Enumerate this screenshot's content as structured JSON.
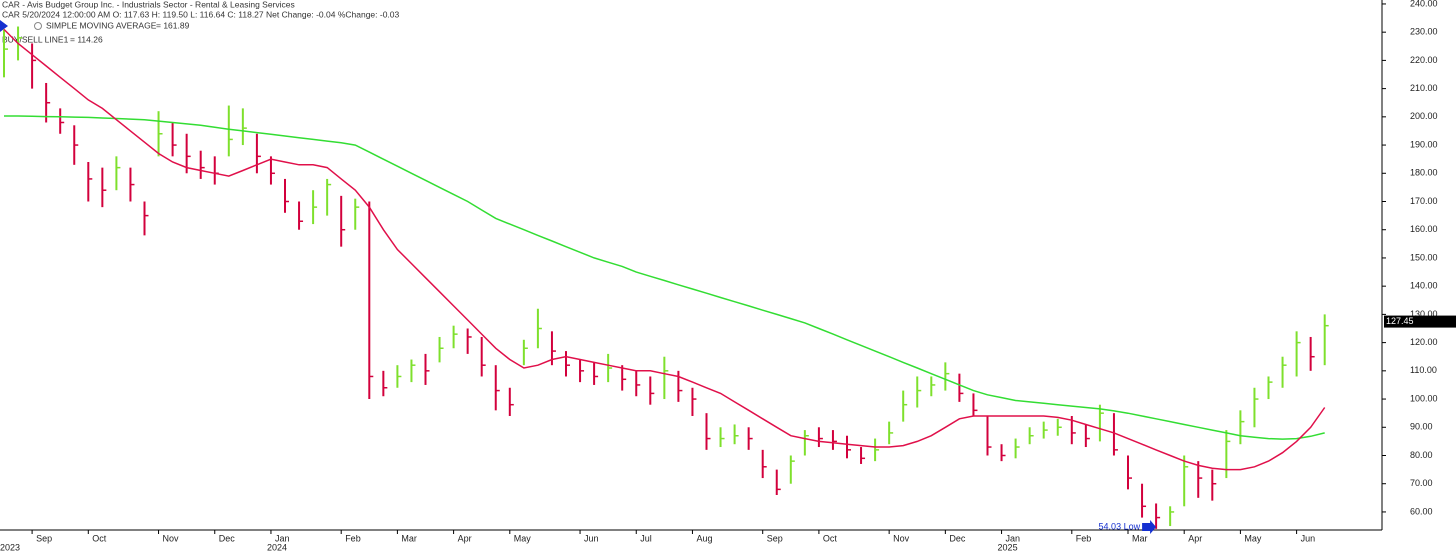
{
  "chart_data": {
    "type": "ohlc",
    "title": "CAR - Avis Budget Group Inc. - Industrials Sector - Rental & Leasing Services",
    "subtitle": "CAR 5/20/2024 12:00:00 AM O: 117.63 H: 119.50 L: 116.64 C: 118.27 Net Change: -0.04  %Change: -0.03",
    "categories": [
      null,
      null,
      "Sep",
      null,
      null,
      null,
      "Oct",
      null,
      null,
      null,
      null,
      "Nov",
      null,
      null,
      null,
      "Dec",
      null,
      null,
      null,
      "Jan",
      null,
      null,
      null,
      null,
      "Feb",
      null,
      null,
      null,
      "Mar",
      null,
      null,
      null,
      "Apr",
      null,
      null,
      null,
      "May",
      null,
      null,
      null,
      null,
      "Jun",
      null,
      null,
      null,
      "Jul",
      null,
      null,
      null,
      "Aug",
      null,
      null,
      null,
      null,
      "Sep",
      null,
      null,
      null,
      "Oct",
      null,
      null,
      null,
      null,
      "Nov",
      null,
      null,
      null,
      "Dec",
      null,
      null,
      null,
      "Jan",
      null,
      null,
      null,
      null,
      "Feb",
      null,
      null,
      null,
      "Mar",
      null,
      null,
      null,
      "Apr",
      null,
      null,
      null,
      "May",
      null,
      null,
      null,
      "Jun",
      null,
      null
    ],
    "category_years": [
      "2023",
      null,
      null,
      null,
      null,
      null,
      null,
      null,
      null,
      null,
      null,
      null,
      null,
      null,
      null,
      null,
      null,
      null,
      null,
      "2024",
      null,
      null,
      null,
      null,
      null,
      null,
      null,
      null,
      null,
      null,
      null,
      null,
      null,
      null,
      null,
      null,
      null,
      null,
      null,
      null,
      null,
      null,
      null,
      null,
      null,
      null,
      null,
      null,
      null,
      null,
      null,
      null,
      null,
      null,
      null,
      null,
      null,
      null,
      null,
      null,
      null,
      null,
      null,
      null,
      null,
      null,
      null,
      null,
      null,
      null,
      null,
      "2025",
      null,
      null,
      null,
      null,
      null,
      null,
      null,
      null,
      null,
      null,
      null,
      null,
      null,
      null,
      null,
      null,
      null,
      null,
      null,
      null,
      null,
      null,
      null
    ],
    "series": [
      {
        "name": "CAR",
        "type": "ohlc",
        "up_color": "#7ee02c",
        "down_color": "#d2003c",
        "values": [
          224,
          228,
          220,
          205,
          198,
          190,
          178,
          174,
          182,
          176,
          165,
          194,
          190,
          186,
          182,
          180,
          192,
          196,
          186,
          180,
          170,
          163,
          168,
          176,
          160,
          168,
          108,
          104,
          108,
          112,
          110,
          118,
          123,
          122,
          112,
          103,
          98,
          118,
          125,
          117,
          112,
          110,
          108,
          111,
          107,
          105,
          102,
          110,
          103,
          100,
          86,
          86,
          87,
          86,
          76,
          68,
          78,
          87,
          86,
          85,
          82,
          79,
          82,
          88,
          98,
          103,
          105,
          109,
          102,
          96,
          83,
          80,
          83,
          87,
          89,
          90,
          88,
          86,
          95,
          82,
          72,
          62,
          58,
          60,
          76,
          72,
          70,
          85,
          92,
          100,
          106,
          112,
          120,
          115,
          126
        ],
        "high": [
          231,
          232,
          226,
          212,
          203,
          197,
          184,
          182,
          186,
          182,
          170,
          202,
          198,
          194,
          188,
          186,
          204,
          203,
          194,
          186,
          178,
          170,
          174,
          178,
          172,
          171,
          170,
          110,
          112,
          114,
          116,
          122,
          126,
          125,
          122,
          112,
          104,
          121,
          132,
          124,
          117,
          114,
          113,
          116,
          112,
          110,
          108,
          115,
          110,
          104,
          95,
          90,
          91,
          90,
          82,
          75,
          80,
          89,
          90,
          89,
          87,
          83,
          86,
          92,
          103,
          108,
          108,
          113,
          109,
          102,
          94,
          84,
          86,
          90,
          92,
          93,
          94,
          91,
          98,
          95,
          80,
          70,
          63,
          62,
          80,
          78,
          75,
          89,
          96,
          104,
          108,
          115,
          124,
          122,
          130
        ],
        "low": [
          214,
          220,
          210,
          198,
          194,
          183,
          170,
          168,
          174,
          170,
          158,
          186,
          186,
          180,
          178,
          176,
          186,
          190,
          180,
          176,
          166,
          160,
          162,
          165,
          154,
          160,
          100,
          101,
          104,
          106,
          105,
          113,
          118,
          116,
          108,
          96,
          94,
          112,
          118,
          112,
          108,
          106,
          105,
          106,
          103,
          101,
          98,
          100,
          99,
          94,
          82,
          83,
          84,
          82,
          72,
          66,
          70,
          80,
          83,
          82,
          79,
          77,
          78,
          84,
          92,
          97,
          101,
          103,
          99,
          94,
          80,
          78,
          79,
          84,
          86,
          87,
          84,
          83,
          85,
          80,
          68,
          58,
          54,
          55,
          62,
          65,
          64,
          72,
          84,
          90,
          100,
          104,
          108,
          110,
          112
        ]
      },
      {
        "name": "SIMPLE MOVING AVERAGE",
        "legend_value": "= 161.89",
        "type": "line",
        "color": "#33dd33",
        "values": [
          200.3,
          200.3,
          200.2,
          200.1,
          200,
          199.9,
          199.8,
          199.6,
          199.4,
          199.2,
          199,
          198.5,
          198,
          197.5,
          197,
          196.3,
          195.6,
          195,
          194.4,
          193.8,
          193.2,
          192.6,
          192,
          191.4,
          190.8,
          190,
          187.5,
          185,
          182.5,
          180,
          177.5,
          175,
          172.5,
          170,
          167,
          164,
          162,
          160,
          158,
          156,
          154,
          152,
          150,
          148.5,
          147,
          145,
          143.5,
          142,
          140.5,
          139,
          137.5,
          136,
          134.5,
          133,
          131.5,
          130,
          128.5,
          127,
          125,
          123,
          121,
          119,
          117,
          115,
          113,
          111,
          109,
          107,
          105,
          103,
          101.5,
          100.5,
          99.5,
          99,
          98.5,
          98,
          97.5,
          97,
          96.5,
          95.8,
          95,
          94,
          93,
          92,
          91,
          90,
          89,
          88,
          87,
          86.5,
          86,
          85.8,
          86,
          86.8,
          88
        ]
      },
      {
        "name": "BUY/SELL LINE1",
        "legend_value": "= 114.26",
        "type": "line",
        "color": "#e0104a",
        "values": [
          231,
          226,
          222,
          218,
          214,
          210,
          206,
          203,
          199,
          195,
          191,
          187,
          184,
          182,
          181,
          180,
          179,
          181,
          183,
          185,
          184,
          183,
          183,
          182,
          178,
          174,
          168,
          160,
          153,
          148,
          143,
          138,
          133,
          128,
          123,
          118,
          114,
          111,
          112,
          114,
          115,
          114,
          113,
          112,
          111,
          110,
          110,
          109,
          108,
          106,
          104,
          102,
          99,
          96,
          93,
          90,
          87,
          86,
          85,
          84.5,
          84,
          83.5,
          83,
          83,
          83.5,
          85,
          87,
          90,
          93,
          94,
          94,
          94,
          94,
          94,
          94,
          93.5,
          92.5,
          91,
          89.5,
          88,
          86,
          84,
          82,
          80,
          78,
          76.5,
          75.5,
          75,
          75,
          76,
          78,
          81,
          85,
          90,
          97
        ]
      }
    ],
    "ylim": [
      53.6,
      241.4
    ],
    "yticks": [
      {
        "value": 60,
        "label": "60.00"
      },
      {
        "value": 70,
        "label": "70.00"
      },
      {
        "value": 80,
        "label": "80.00"
      },
      {
        "value": 90,
        "label": "90.00"
      },
      {
        "value": 100,
        "label": "100.00"
      },
      {
        "value": 110,
        "label": "110.00"
      },
      {
        "value": 120,
        "label": "120.00"
      },
      {
        "value": 130,
        "label": "130.00"
      },
      {
        "value": 140,
        "label": "140.00"
      },
      {
        "value": 150,
        "label": "150.00"
      },
      {
        "value": 160,
        "label": "160.00"
      },
      {
        "value": 170,
        "label": "170.00"
      },
      {
        "value": 180,
        "label": "180.00"
      },
      {
        "value": 190,
        "label": "190.00"
      },
      {
        "value": 200,
        "label": "200.00"
      },
      {
        "value": 210,
        "label": "210.00"
      },
      {
        "value": 220,
        "label": "220.00"
      },
      {
        "value": 230,
        "label": "230.00"
      },
      {
        "value": 240,
        "label": "240.00"
      }
    ],
    "last_price": {
      "value": 127.45,
      "label": "127.45"
    },
    "low_annotation": "54.03 Low",
    "grid": false
  }
}
